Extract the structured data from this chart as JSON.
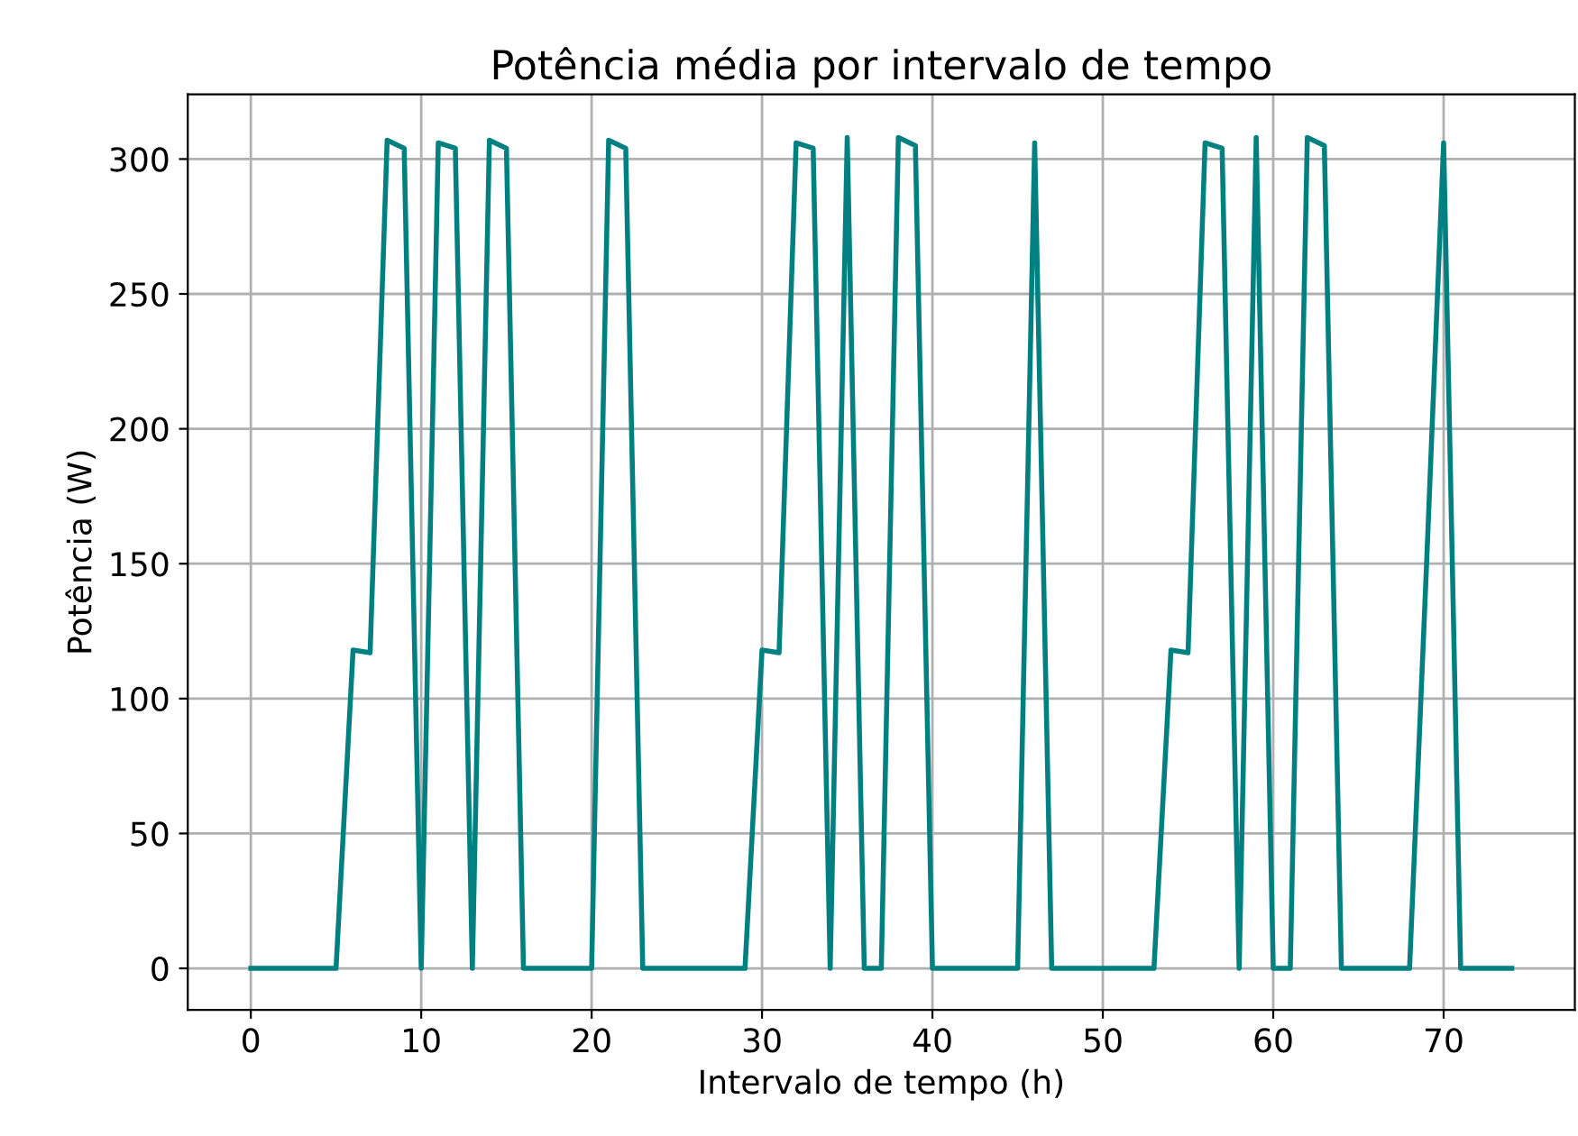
{
  "chart_data": {
    "type": "line",
    "title": "Potência média por intervalo de tempo",
    "xlabel": "Intervalo de tempo (h)",
    "ylabel": "Potência (W)",
    "x": [
      0,
      1,
      2,
      3,
      4,
      5,
      6,
      7,
      8,
      9,
      10,
      11,
      12,
      13,
      14,
      15,
      16,
      17,
      18,
      19,
      20,
      21,
      22,
      23,
      24,
      25,
      26,
      27,
      28,
      29,
      30,
      31,
      32,
      33,
      34,
      35,
      36,
      37,
      38,
      39,
      40,
      41,
      42,
      43,
      44,
      45,
      46,
      47,
      48,
      49,
      50,
      51,
      52,
      53,
      54,
      55,
      56,
      57,
      58,
      59,
      60,
      61,
      62,
      63,
      64,
      65,
      66,
      67,
      68,
      69,
      70,
      71,
      72,
      73,
      74
    ],
    "series": [
      {
        "color": "#008080",
        "values": [
          0,
          0,
          0,
          0,
          0,
          0,
          118,
          117,
          307,
          304,
          0,
          306,
          304,
          0,
          307,
          304,
          0,
          0,
          0,
          0,
          0,
          307,
          304,
          0,
          0,
          0,
          0,
          0,
          0,
          0,
          118,
          117,
          306,
          304,
          0,
          308,
          0,
          0,
          308,
          305,
          0,
          0,
          0,
          0,
          0,
          0,
          306,
          0,
          0,
          0,
          0,
          0,
          0,
          0,
          118,
          117,
          306,
          304,
          0,
          308,
          0,
          0,
          308,
          305,
          0,
          0,
          0,
          0,
          0,
          150,
          306,
          0,
          0,
          0,
          0
        ]
      }
    ],
    "xlim": [
      -3.7,
      77.7
    ],
    "ylim": [
      -15.4,
      324
    ],
    "xticks": [
      0,
      10,
      20,
      30,
      40,
      50,
      60,
      70
    ],
    "yticks": [
      0,
      50,
      100,
      150,
      200,
      250,
      300
    ],
    "grid": true,
    "marker": "none",
    "line_style": "solid"
  }
}
